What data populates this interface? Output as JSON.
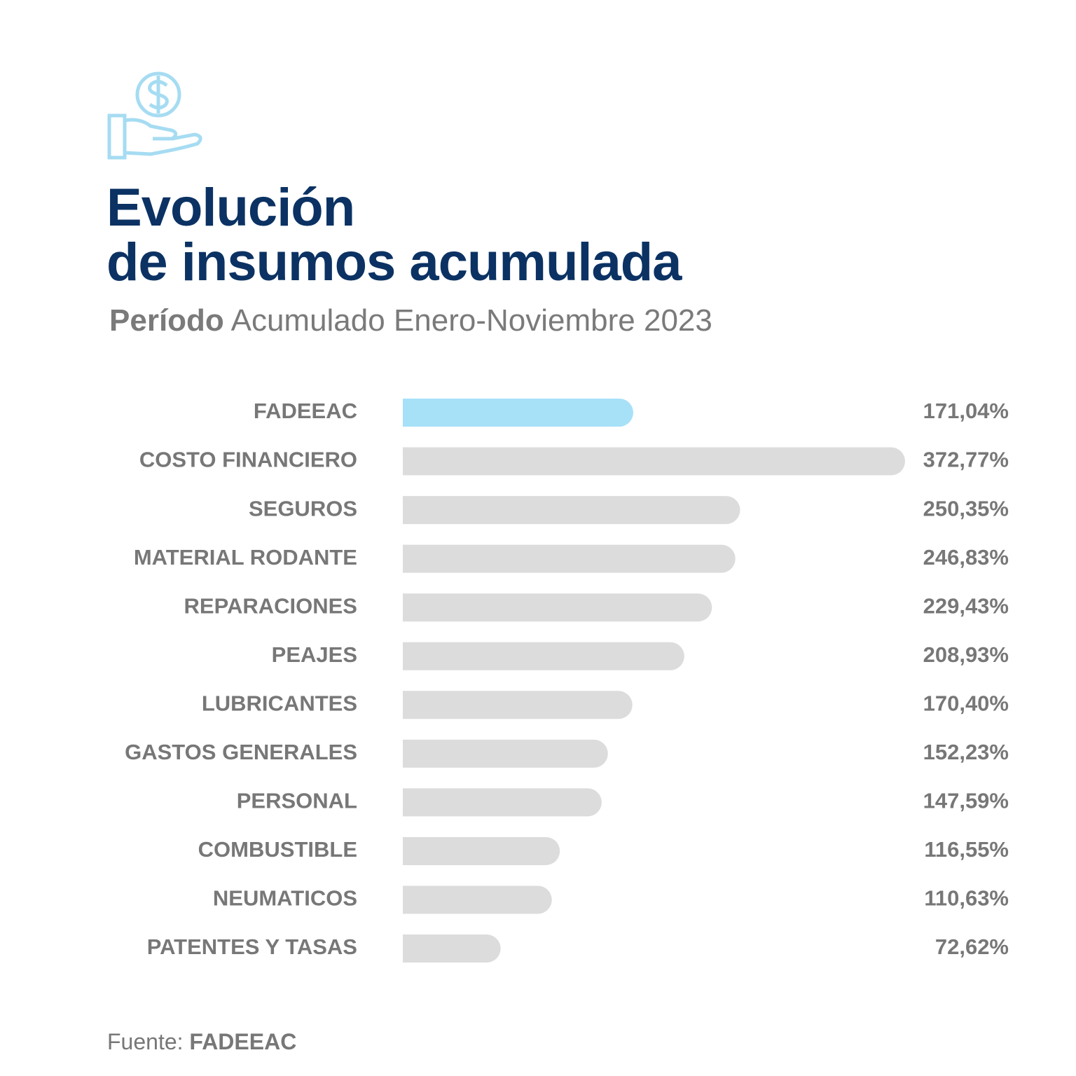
{
  "chart_data": {
    "type": "hbar",
    "title": [
      "Evolución",
      "de insumos acumulada"
    ],
    "subtitle": [
      "Período",
      "Acumulado Enero-Noviembre 2023"
    ],
    "categories": [
      "FADEEAC",
      "COSTO FINANCIERO",
      "SEGUROS",
      "MATERIAL RODANTE",
      "REPARACIONES",
      "PEAJES",
      "LUBRICANTES",
      "GASTOS GENERALES",
      "PERSONAL",
      "COMBUSTIBLE",
      "NEUMATICOS",
      "PATENTES Y TASAS"
    ],
    "values": [
      171.04,
      372.77,
      250.35,
      246.83,
      229.43,
      208.93,
      170.4,
      152.23,
      147.59,
      116.55,
      110.63,
      72.62
    ],
    "value_labels": [
      "171,04%",
      "372,77%",
      "250,35%",
      "246,83%",
      "229,43%",
      "208,93%",
      "170,40%",
      "152,23%",
      "147,59%",
      "116,55%",
      "110,63%",
      "72,62%"
    ],
    "colors": [
      "#a6e1f8",
      "#dcdcdc",
      "#dcdcdc",
      "#dcdcdc",
      "#dcdcdc",
      "#dcdcdc",
      "#dcdcdc",
      "#dcdcdc",
      "#dcdcdc",
      "#dcdcdc",
      "#dcdcdc",
      "#dcdcdc"
    ],
    "source": [
      "Fuente:",
      "FADEEAC"
    ]
  }
}
